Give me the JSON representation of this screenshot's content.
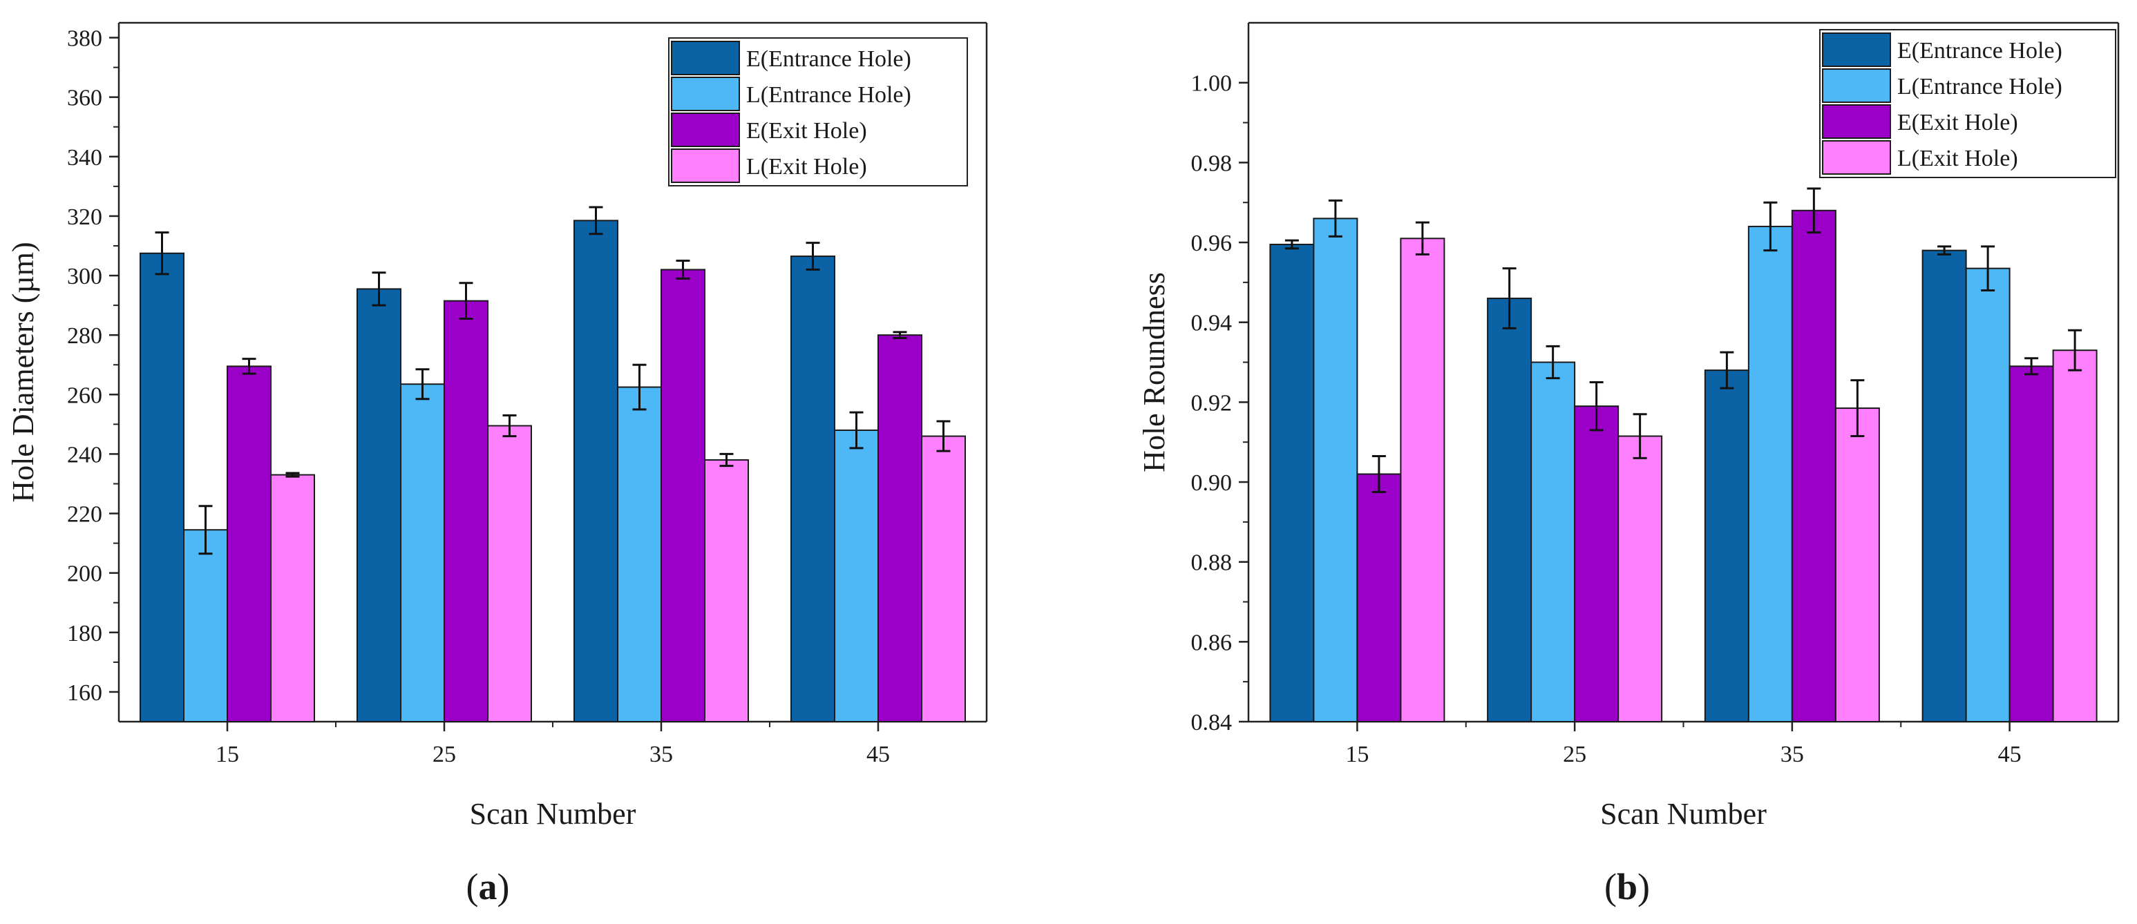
{
  "figure": {
    "panels": [
      {
        "label_prefix": "(",
        "label_letter": "a",
        "label_suffix": ")"
      },
      {
        "label_prefix": "(",
        "label_letter": "b",
        "label_suffix": ")"
      }
    ]
  },
  "chart_data": [
    {
      "type": "bar",
      "title": "",
      "xlabel": "Scan Number",
      "ylabel": "Hole Diameters (µm)",
      "categories": [
        "15",
        "25",
        "35",
        "45"
      ],
      "ylim": [
        150,
        385
      ],
      "yticks": [
        160,
        180,
        200,
        220,
        240,
        260,
        280,
        300,
        320,
        340,
        360,
        380
      ],
      "grid": false,
      "legend_position": "top-right",
      "series": [
        {
          "name": "E(Entrance Hole)",
          "color": "#0b62a4",
          "values": [
            307.5,
            295.5,
            318.5,
            306.5
          ],
          "errors": [
            7,
            5.5,
            4.5,
            4.5
          ]
        },
        {
          "name": "L(Entrance Hole)",
          "color": "#4db8f5",
          "values": [
            214.5,
            263.5,
            262.5,
            248
          ],
          "errors": [
            8,
            5,
            7.5,
            6
          ]
        },
        {
          "name": "E(Exit Hole)",
          "color": "#9a00c8",
          "values": [
            269.5,
            291.5,
            302,
            280
          ],
          "errors": [
            2.5,
            6,
            3,
            1
          ]
        },
        {
          "name": "L(Exit Hole)",
          "color": "#ff80ff",
          "values": [
            233,
            249.5,
            238,
            246
          ],
          "errors": [
            0.6,
            3.5,
            2,
            5
          ]
        }
      ]
    },
    {
      "type": "bar",
      "title": "",
      "xlabel": "Scan Number",
      "ylabel": "Hole Roundness",
      "categories": [
        "15",
        "25",
        "35",
        "45"
      ],
      "ylim": [
        0.84,
        1.015
      ],
      "yticks": [
        "0.84",
        "0.86",
        "0.88",
        "0.90",
        "0.92",
        "0.94",
        "0.96",
        "0.98",
        "1.00"
      ],
      "grid": false,
      "legend_position": "top-right",
      "series": [
        {
          "name": "E(Entrance Hole)",
          "color": "#0b62a4",
          "values": [
            0.9595,
            0.946,
            0.928,
            0.958
          ],
          "errors": [
            0.001,
            0.0075,
            0.0045,
            0.001
          ]
        },
        {
          "name": "L(Entrance Hole)",
          "color": "#4db8f5",
          "values": [
            0.966,
            0.93,
            0.964,
            0.9535
          ],
          "errors": [
            0.0045,
            0.004,
            0.006,
            0.0055
          ]
        },
        {
          "name": "E(Exit Hole)",
          "color": "#9a00c8",
          "values": [
            0.902,
            0.919,
            0.968,
            0.929
          ],
          "errors": [
            0.0045,
            0.006,
            0.0055,
            0.002
          ]
        },
        {
          "name": "L(Exit Hole)",
          "color": "#ff80ff",
          "values": [
            0.961,
            0.9115,
            0.9185,
            0.933
          ],
          "errors": [
            0.004,
            0.0055,
            0.007,
            0.005
          ]
        }
      ]
    }
  ]
}
